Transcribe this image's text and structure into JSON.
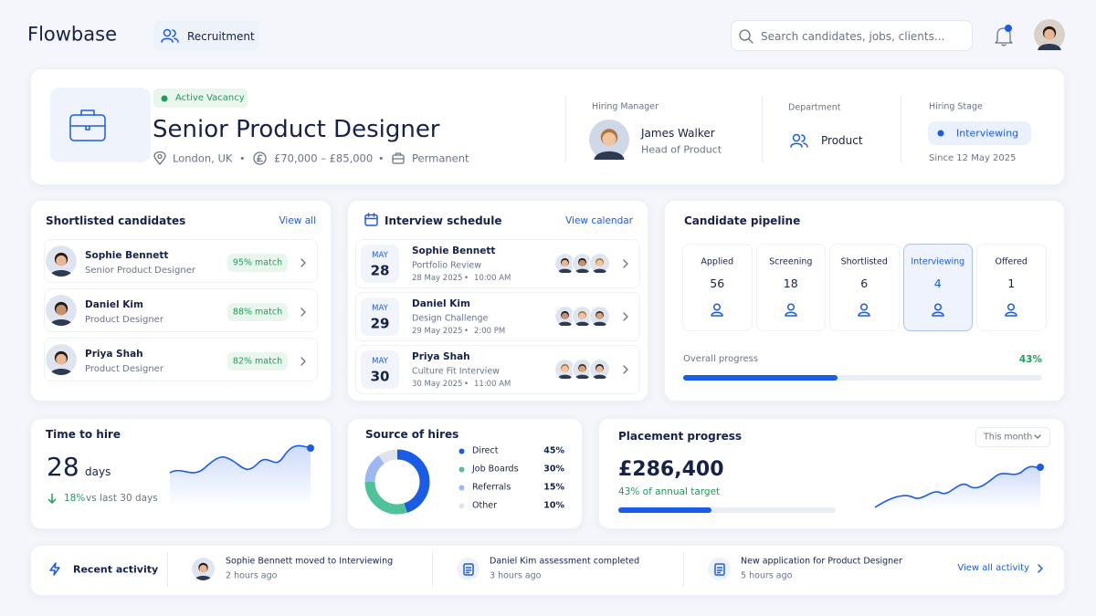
{
  "header": {
    "logo": "Flowbase",
    "nav": "Recruitment",
    "search_placeholder": "Search candidates, jobs, clients..."
  },
  "vacancy": {
    "status": "Active Vacancy",
    "title": "Senior Product Designer",
    "location": "London, UK",
    "salary": "£70,000 – £85,000",
    "contract": "Permanent",
    "hiring_manager": {
      "label": "Hiring Manager",
      "name": "James Walker",
      "role": "Head of Product"
    },
    "department": {
      "label": "Department",
      "value": "Product"
    },
    "hiring_stage": {
      "label": "Hiring Stage",
      "value": "Interviewing",
      "since": "Since 12 May 2025"
    }
  },
  "shortlist": {
    "title": "Shortlisted candidates",
    "link": "View all",
    "candidates": [
      {
        "name": "Sophie Bennett",
        "role": "Senior Product Designer",
        "match": "95% match"
      },
      {
        "name": "Daniel Kim",
        "role": "Product Designer",
        "match": "88% match"
      },
      {
        "name": "Priya Shah",
        "role": "Product Designer",
        "match": "82% match"
      }
    ]
  },
  "interviews": {
    "title": "Interview schedule",
    "link": "View calendar",
    "items": [
      {
        "month": "MAY",
        "day": 28,
        "name": "Sophie Bennett",
        "type": "Portfolio Review",
        "date": "28 May 2025",
        "time": "10:00 AM"
      },
      {
        "month": "MAY",
        "day": 29,
        "name": "Daniel Kim",
        "type": "Design Challenge",
        "date": "29 May 2025",
        "time": "2:00 PM"
      },
      {
        "month": "MAY",
        "day": 30,
        "name": "Priya Shah",
        "type": "Culture Fit Interview",
        "date": "30 May 2025",
        "time": "11:00 AM"
      }
    ]
  },
  "pipeline": {
    "title": "Candidate pipeline",
    "stages": [
      {
        "name": "Applied",
        "count": 56
      },
      {
        "name": "Screening",
        "count": 18
      },
      {
        "name": "Shortlisted",
        "count": 6
      },
      {
        "name": "Interviewing",
        "count": 4
      },
      {
        "name": "Offered",
        "count": 1
      }
    ],
    "progress": {
      "label": "Overall progress",
      "value": 43,
      "value_label": "43%"
    }
  },
  "time_to_hire": {
    "title": "Time to hire",
    "value": 28,
    "unit": "days",
    "change": "18%",
    "change_label": "vs last 30 days"
  },
  "sources": {
    "title": "Source of hires",
    "items": [
      {
        "name": "Direct",
        "value": 45,
        "value_label": "45%",
        "color": "#1a5ce6"
      },
      {
        "name": "Job Boards",
        "value": 30,
        "value_label": "30%",
        "color": "#4fc29a"
      },
      {
        "name": "Referrals",
        "value": 15,
        "value_label": "15%",
        "color": "#9db7f3"
      },
      {
        "name": "Other",
        "value": 10,
        "value_label": "10%",
        "color": "#dfe4ec"
      }
    ]
  },
  "placement": {
    "title": "Placement progress",
    "period": "This month",
    "amount": "£286,400",
    "target": {
      "value": 43,
      "label": "43% of annual target"
    }
  },
  "activity": {
    "title": "Recent activity",
    "link": "View all activity",
    "items": [
      {
        "text": "Sophie Bennett moved to Interviewing",
        "time": "2 hours ago"
      },
      {
        "text": "Daniel Kim assessment completed",
        "time": "3 hours ago"
      },
      {
        "text": "New application for Product Designer",
        "time": "5 hours ago"
      }
    ]
  }
}
